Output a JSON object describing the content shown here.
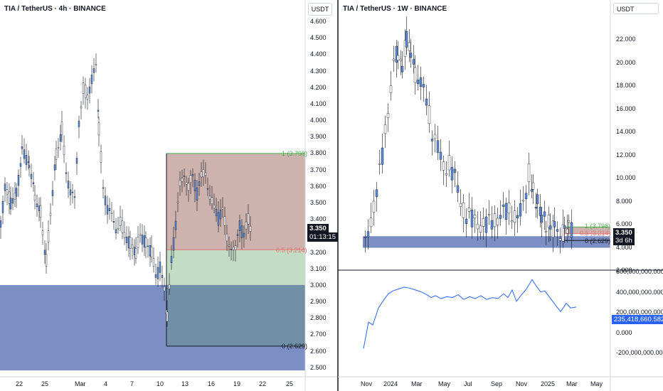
{
  "left_chart": {
    "title": "TIA / TetherUS · 4h · BINANCE",
    "currency_button": "USDT",
    "price_axis": [
      "4.600",
      "4.500",
      "4.400",
      "4.300",
      "4.200",
      "4.100",
      "4.000",
      "3.900",
      "3.800",
      "3.700",
      "3.600",
      "3.500",
      "3.400",
      "3.300",
      "3.200",
      "3.100",
      "3.000",
      "2.900",
      "2.800",
      "2.700",
      "2.600",
      "2.500"
    ],
    "time_axis": [
      "22",
      "25",
      "Mar",
      "4",
      "7",
      "10",
      "13",
      "16",
      "19",
      "22",
      "25"
    ],
    "current_price": "3.350",
    "countdown": "01:13:15",
    "fib_levels": [
      {
        "label": "1 (3.798)",
        "color": "#4caf50"
      },
      {
        "label": "0.5 (3.214)",
        "color": "#e57373"
      },
      {
        "label": "0 (2.629)",
        "color": "#131722"
      }
    ],
    "colors": {
      "bull": "#5b8bd6",
      "bear": "#ffffff",
      "sell_zone": "#c4a49f",
      "buy_zone": "#c3dcc4",
      "demand_zone": "#7b8fc4"
    }
  },
  "right_chart": {
    "title": "TIA / TetherUS · 1W · BINANCE",
    "currency_button": "USDT",
    "price_axis": [
      "22.000",
      "20.000",
      "18.000",
      "16.000",
      "14.000",
      "12.000",
      "10.000",
      "8.000",
      "6.000",
      "4.000",
      "2.000"
    ],
    "time_axis": [
      "Nov",
      "2024",
      "Mar",
      "May",
      "Jul",
      "Sep",
      "Nov",
      "2025",
      "Mar",
      "May"
    ],
    "current_price": "3.350",
    "countdown": "3d 6h",
    "fib_levels": [
      {
        "label": "1 (3.798)",
        "color": "#4caf50"
      },
      {
        "label": "0.5 (3.214)",
        "color": "#e57373"
      },
      {
        "label": "0 (2.629)",
        "color": "#131722"
      }
    ],
    "indicator_axis": [
      "600,000,000.000",
      "400,000,000.000",
      "200,000,000.000",
      "0.000",
      "-200,000,000.000"
    ],
    "indicator_value": "235,418,660.582",
    "indicator_color": "#2962ff"
  }
}
